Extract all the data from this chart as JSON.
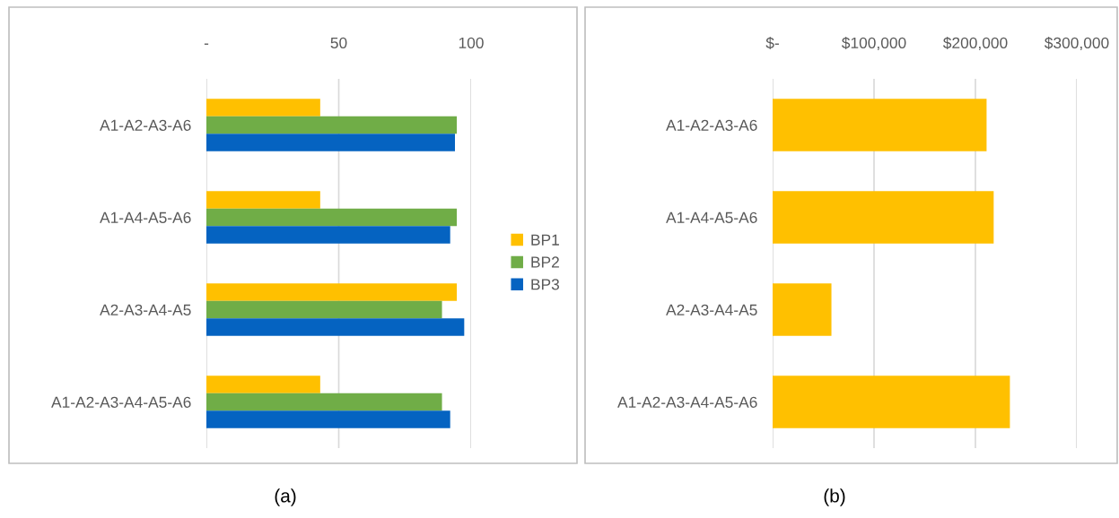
{
  "chart_data": [
    {
      "type": "bar",
      "orientation": "horizontal",
      "categories": [
        "A1-A2-A3-A6",
        "A1-A4-A5-A6",
        "A2-A3-A4-A5",
        "A1-A2-A3-A4-A5-A6"
      ],
      "series": [
        {
          "name": "BP1",
          "color": "#ffc000",
          "values": [
            43,
            43,
            94.6,
            43
          ]
        },
        {
          "name": "BP2",
          "color": "#70ad47",
          "values": [
            94.6,
            94.6,
            89,
            89
          ]
        },
        {
          "name": "BP3",
          "color": "#0563c1",
          "values": [
            93.9,
            92.1,
            97.4,
            92.1
          ]
        }
      ],
      "xlim": [
        0,
        100
      ],
      "xticks": [
        {
          "value": 0,
          "label": "-"
        },
        50,
        100
      ],
      "grid": "x",
      "legend": "right",
      "annotations": [
        "(a)"
      ]
    },
    {
      "type": "bar",
      "orientation": "horizontal",
      "categories": [
        "A1-A2-A3-A6",
        "A1-A4-A5-A6",
        "A2-A3-A4-A5",
        "A1-A2-A3-A4-A5-A6"
      ],
      "series": [
        {
          "color": "#ffc000",
          "values": [
            211000,
            218000,
            58000,
            234000
          ]
        }
      ],
      "xlim": [
        0,
        300000
      ],
      "xticks": [
        {
          "value": 0,
          "label": "$-"
        },
        {
          "value": 100000,
          "label": "$100,000"
        },
        {
          "value": 200000,
          "label": "$200,000"
        },
        {
          "value": 300000,
          "label": "$300,000"
        }
      ],
      "grid": "x",
      "annotations": [
        "(b)"
      ]
    }
  ]
}
